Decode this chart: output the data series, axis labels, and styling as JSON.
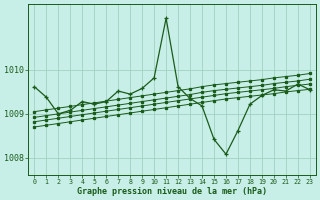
{
  "background_color": "#c8eee8",
  "grid_color": "#99ccbb",
  "line_color": "#1a5c1a",
  "xlabel": "Graphe pression niveau de la mer (hPa)",
  "ylim": [
    1007.6,
    1011.5
  ],
  "yticks": [
    1008,
    1009,
    1010
  ],
  "x": [
    0,
    1,
    2,
    3,
    4,
    5,
    6,
    7,
    8,
    9,
    10,
    11,
    12,
    13,
    14,
    15,
    16,
    17,
    18,
    19,
    20,
    21,
    22,
    23
  ],
  "main_series": [
    1009.62,
    1009.38,
    1009.0,
    1009.08,
    1009.28,
    1009.22,
    1009.28,
    1009.52,
    1009.45,
    1009.58,
    1009.82,
    1011.18,
    1009.62,
    1009.35,
    1009.18,
    1008.42,
    1008.08,
    1008.62,
    1009.22,
    1009.42,
    1009.55,
    1009.52,
    1009.68,
    1009.55
  ],
  "trend_lines": [
    [
      1009.05,
      1009.09,
      1009.13,
      1009.17,
      1009.21,
      1009.25,
      1009.29,
      1009.33,
      1009.37,
      1009.41,
      1009.45,
      1009.49,
      1009.53,
      1009.57,
      1009.62,
      1009.66,
      1009.69,
      1009.72,
      1009.75,
      1009.78,
      1009.82,
      1009.85,
      1009.88,
      1009.92
    ],
    [
      1008.92,
      1008.96,
      1009.0,
      1009.04,
      1009.08,
      1009.12,
      1009.16,
      1009.2,
      1009.24,
      1009.28,
      1009.32,
      1009.36,
      1009.4,
      1009.44,
      1009.49,
      1009.53,
      1009.56,
      1009.59,
      1009.62,
      1009.65,
      1009.69,
      1009.72,
      1009.75,
      1009.79
    ],
    [
      1008.82,
      1008.86,
      1008.9,
      1008.94,
      1008.98,
      1009.02,
      1009.06,
      1009.1,
      1009.14,
      1009.18,
      1009.22,
      1009.26,
      1009.3,
      1009.34,
      1009.38,
      1009.42,
      1009.46,
      1009.49,
      1009.52,
      1009.55,
      1009.58,
      1009.62,
      1009.65,
      1009.68
    ],
    [
      1008.7,
      1008.74,
      1008.78,
      1008.82,
      1008.86,
      1008.9,
      1008.94,
      1008.98,
      1009.02,
      1009.06,
      1009.1,
      1009.14,
      1009.18,
      1009.22,
      1009.26,
      1009.3,
      1009.34,
      1009.37,
      1009.4,
      1009.43,
      1009.46,
      1009.5,
      1009.53,
      1009.56
    ]
  ]
}
